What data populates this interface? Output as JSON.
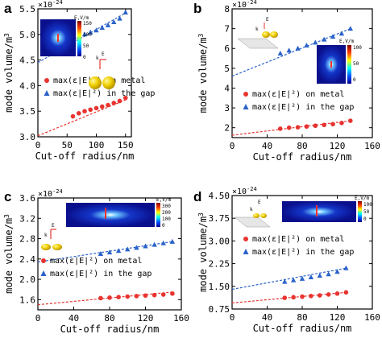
{
  "chart_data": [
    {
      "panel": "a",
      "type": "scatter",
      "xlabel": "Cut-off radius/nm",
      "ylabel": "mode volume/m",
      "ylabel_sup": "3",
      "multiplier": "×10",
      "multiplier_exp": "-24",
      "xlim": [
        0,
        160
      ],
      "ylim": [
        3.0,
        5.5
      ],
      "xticks": [
        0,
        50,
        100,
        150
      ],
      "yticks": [
        3.0,
        3.5,
        4.0,
        4.5,
        5.0,
        5.5
      ],
      "ytick_labels": [
        "3.0",
        "3.5",
        "4.0",
        "4.5",
        "5.0",
        "5.5"
      ],
      "legend_position": "center-right",
      "series": [
        {
          "name": "max(ε|E|²) on metal",
          "marker": "circle",
          "color": "#e8332f",
          "x": [
            60,
            70,
            80,
            90,
            100,
            110,
            120,
            130,
            140,
            150
          ],
          "y": [
            3.4,
            3.46,
            3.5,
            3.53,
            3.56,
            3.59,
            3.62,
            3.66,
            3.7,
            3.76
          ],
          "fit": [
            [
              0,
              3.02
            ],
            [
              150,
              3.72
            ]
          ]
        },
        {
          "name": "max(ε|E|²) in the gap",
          "marker": "triangle",
          "color": "#2a62c9",
          "x": [
            60,
            70,
            80,
            90,
            100,
            110,
            120,
            130,
            140,
            150
          ],
          "y": [
            4.9,
            4.95,
            5.0,
            5.04,
            5.08,
            5.13,
            5.18,
            5.24,
            5.31,
            5.43
          ],
          "fit": [
            [
              0,
              4.45
            ],
            [
              150,
              5.42
            ]
          ]
        }
      ],
      "colorbar": {
        "label": "E,V/m",
        "ticks": [
          "150",
          "100",
          "50",
          "0"
        ]
      },
      "field_label": "E",
      "k_label": "k"
    },
    {
      "panel": "b",
      "type": "scatter",
      "xlabel": "Cut-off radius/nm",
      "ylabel": "mode volume/m",
      "ylabel_sup": "3",
      "multiplier": "×10",
      "multiplier_exp": "-24",
      "xlim": [
        0,
        160
      ],
      "ylim": [
        1.5,
        8
      ],
      "xticks": [
        0,
        40,
        80,
        120,
        160
      ],
      "yticks": [
        2,
        3,
        4,
        5,
        6,
        7,
        8
      ],
      "ytick_labels": [
        "2",
        "3",
        "4",
        "5",
        "6",
        "7",
        "8"
      ],
      "legend_position": "bottom-right",
      "series": [
        {
          "name": "max(ε|E|²) on metal",
          "marker": "circle",
          "color": "#e8332f",
          "x": [
            55,
            65,
            75,
            85,
            95,
            105,
            115,
            125,
            135
          ],
          "y": [
            1.95,
            2.0,
            2.02,
            2.06,
            2.1,
            2.14,
            2.18,
            2.24,
            2.35
          ],
          "fit": [
            [
              0,
              1.62
            ],
            [
              135,
              2.35
            ]
          ]
        },
        {
          "name": "max(ε|E|²) in the gap",
          "marker": "triangle",
          "color": "#2a62c9",
          "x": [
            55,
            65,
            75,
            85,
            95,
            105,
            115,
            125,
            135
          ],
          "y": [
            5.75,
            5.9,
            6.0,
            6.15,
            6.3,
            6.45,
            6.6,
            6.75,
            7.0
          ],
          "fit": [
            [
              0,
              4.6
            ],
            [
              135,
              7.0
            ]
          ]
        }
      ],
      "colorbar": {
        "label": "E,V/m",
        "ticks": [
          "100",
          "50",
          "0"
        ]
      },
      "field_label": "E",
      "k_label": "k"
    },
    {
      "panel": "c",
      "type": "scatter",
      "xlabel": "Cut-off radius/nm",
      "ylabel": "mode volume/m",
      "ylabel_sup": "3",
      "multiplier": "×10",
      "multiplier_exp": "-24",
      "xlim": [
        0,
        160
      ],
      "ylim": [
        1.4,
        3.6
      ],
      "xticks": [
        0,
        40,
        80,
        120,
        160
      ],
      "yticks": [
        1.6,
        2.0,
        2.4,
        2.8,
        3.2,
        3.6
      ],
      "ytick_labels": [
        "1.6",
        "2.0",
        "2.4",
        "2.8",
        "3.2",
        "3.6"
      ],
      "legend_position": "bottom-left",
      "series": [
        {
          "name": "max(ε|E|²) on metal",
          "marker": "circle",
          "color": "#e8332f",
          "x": [
            70,
            80,
            90,
            100,
            110,
            120,
            130,
            140,
            150
          ],
          "y": [
            1.63,
            1.64,
            1.65,
            1.66,
            1.67,
            1.68,
            1.69,
            1.7,
            1.72
          ],
          "fit": [
            [
              0,
              1.5
            ],
            [
              150,
              1.75
            ]
          ]
        },
        {
          "name": "max(ε|E|²) in the gap",
          "marker": "triangle",
          "color": "#2a62c9",
          "x": [
            70,
            80,
            90,
            100,
            110,
            120,
            130,
            140,
            150
          ],
          "y": [
            2.5,
            2.53,
            2.56,
            2.59,
            2.62,
            2.65,
            2.68,
            2.71,
            2.74
          ],
          "fit": [
            [
              0,
              2.34
            ],
            [
              150,
              2.74
            ]
          ]
        }
      ],
      "colorbar": {
        "label": "E,V/m",
        "ticks": [
          "300",
          "200",
          "100",
          "0"
        ]
      },
      "field_label": "E",
      "k_label": "k"
    },
    {
      "panel": "d",
      "type": "scatter",
      "xlabel": "Cut-off radius/nm",
      "ylabel": "mode volume/m",
      "ylabel_sup": "3",
      "multiplier": "×10",
      "multiplier_exp": "-24",
      "xlim": [
        0,
        160
      ],
      "ylim": [
        0.75,
        4.5
      ],
      "xticks": [
        0,
        40,
        80,
        120,
        160
      ],
      "yticks": [
        0.75,
        1.5,
        2.25,
        3.0,
        3.75,
        4.5
      ],
      "ytick_labels": [
        "0.75",
        "1.50",
        "2.25",
        "3.00",
        "3.75",
        "4.50"
      ],
      "legend_position": "center-right",
      "series": [
        {
          "name": "max(ε|E|²) on metal",
          "marker": "circle",
          "color": "#e8332f",
          "x": [
            60,
            70,
            80,
            90,
            100,
            110,
            120,
            130
          ],
          "y": [
            1.12,
            1.14,
            1.16,
            1.18,
            1.2,
            1.23,
            1.26,
            1.3
          ],
          "fit": [
            [
              0,
              0.95
            ],
            [
              130,
              1.3
            ]
          ]
        },
        {
          "name": "max(ε|E|²) in the gap",
          "marker": "triangle",
          "color": "#2a62c9",
          "x": [
            60,
            70,
            80,
            90,
            100,
            110,
            120,
            130
          ],
          "y": [
            1.65,
            1.7,
            1.75,
            1.8,
            1.85,
            1.9,
            1.98,
            2.1
          ],
          "fit": [
            [
              0,
              1.4
            ],
            [
              130,
              2.1
            ]
          ]
        }
      ],
      "colorbar": {
        "label": "E,V/m",
        "ticks": [
          "100",
          "50",
          "0"
        ]
      },
      "field_label": "E",
      "k_label": "k"
    }
  ]
}
